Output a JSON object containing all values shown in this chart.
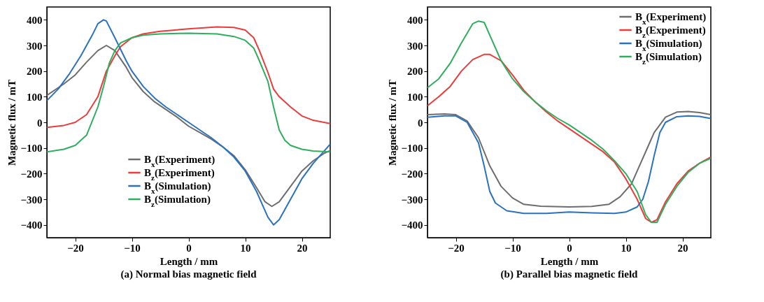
{
  "chart_data": [
    {
      "type": "line",
      "title": "(a) Normal bias magnetic field",
      "xlabel": "Length / mm",
      "ylabel": "Magnetic flux / mT",
      "xlim": [
        -25,
        25
      ],
      "ylim": [
        -450,
        450
      ],
      "xticks": [
        -20,
        -10,
        0,
        10,
        20
      ],
      "yticks": [
        -400,
        -300,
        -200,
        -100,
        0,
        100,
        200,
        300,
        400
      ],
      "legend": "bottom left",
      "series": [
        {
          "name": "B$_{x}$(Experiment)",
          "color": "#6d6d6d",
          "x": [
            -25,
            -22,
            -20,
            -18,
            -16,
            -14.5,
            -13,
            -11,
            -10,
            -8,
            -6,
            -4,
            -2,
            0,
            2,
            4,
            6,
            8,
            10,
            12,
            13.5,
            14.7,
            16,
            18,
            20,
            22,
            24,
            25
          ],
          "values": [
            105,
            150,
            185,
            235,
            280,
            300,
            280,
            215,
            175,
            120,
            80,
            50,
            20,
            -15,
            -40,
            -65,
            -95,
            -130,
            -185,
            -255,
            -310,
            -328,
            -310,
            -250,
            -190,
            -150,
            -120,
            -110
          ]
        },
        {
          "name": "B$_{z}$(Experiment)",
          "color": "#ec3b3b",
          "x": [
            -25,
            -22,
            -20,
            -18,
            -16,
            -14.5,
            -13,
            -12,
            -10,
            -8,
            -5,
            0,
            5,
            8,
            10,
            11.5,
            12.5,
            14,
            15,
            16,
            18,
            20,
            22,
            25
          ],
          "values": [
            -20,
            -12,
            0,
            30,
            100,
            200,
            260,
            295,
            330,
            345,
            355,
            365,
            372,
            370,
            360,
            330,
            280,
            195,
            130,
            100,
            60,
            25,
            8,
            -5
          ]
        },
        {
          "name": "B$_{x}$(Simulation)",
          "color": "#2a72c0",
          "x": [
            -25,
            -23,
            -21,
            -19,
            -17,
            -16,
            -15,
            -14.5,
            -13,
            -11,
            -10,
            -8,
            -6,
            -4,
            -2,
            0,
            2,
            4,
            6,
            8,
            10,
            12,
            14,
            15,
            16,
            18,
            20,
            22,
            24,
            25
          ],
          "values": [
            85,
            130,
            190,
            260,
            340,
            385,
            400,
            395,
            330,
            240,
            200,
            140,
            95,
            60,
            30,
            0,
            -30,
            -60,
            -95,
            -135,
            -190,
            -270,
            -370,
            -400,
            -380,
            -300,
            -220,
            -160,
            -110,
            -85
          ]
        },
        {
          "name": "B$_{z}$(Simulation)",
          "color": "#2fae5e",
          "x": [
            -25,
            -22,
            -20,
            -18,
            -16,
            -15,
            -14,
            -13,
            -12,
            -10,
            -8,
            -5,
            0,
            5,
            8,
            10,
            11.5,
            12.5,
            14,
            15,
            16,
            17,
            18,
            20,
            22,
            25
          ],
          "values": [
            -115,
            -105,
            -90,
            -50,
            60,
            140,
            230,
            280,
            310,
            330,
            340,
            345,
            348,
            345,
            335,
            320,
            290,
            240,
            160,
            60,
            -30,
            -70,
            -90,
            -105,
            -112,
            -115
          ]
        }
      ]
    },
    {
      "type": "line",
      "title": "(b) Parallel bias magnetic field",
      "xlabel": "Length / mm",
      "ylabel": "Magnetic flux / mT",
      "xlim": [
        -25,
        25
      ],
      "ylim": [
        -450,
        450
      ],
      "xticks": [
        -20,
        -10,
        0,
        10,
        20
      ],
      "yticks": [
        -400,
        -300,
        -200,
        -100,
        0,
        100,
        200,
        300,
        400
      ],
      "legend": "top right",
      "series": [
        {
          "name": "B$_{x}$(Experiment)",
          "color": "#6d6d6d",
          "x": [
            -25,
            -22,
            -20,
            -18,
            -16,
            -14,
            -12,
            -10,
            -8,
            -5,
            0,
            4,
            7,
            9,
            11,
            12,
            14,
            15,
            17,
            19,
            21,
            23,
            25
          ],
          "values": [
            30,
            33,
            30,
            5,
            -60,
            -170,
            -250,
            -295,
            -320,
            -327,
            -330,
            -328,
            -320,
            -290,
            -240,
            -190,
            -90,
            -40,
            20,
            40,
            42,
            38,
            30
          ]
        },
        {
          "name": "B$_{z}$(Experiment)",
          "color": "#ec3b3b",
          "x": [
            -25,
            -23,
            -21,
            -19,
            -17,
            -15,
            -14,
            -12,
            -10,
            -8,
            -6,
            -4,
            -2,
            0,
            2,
            4,
            6,
            8,
            10,
            12,
            13.5,
            14.5,
            15.5,
            17,
            19,
            21,
            23,
            25
          ],
          "values": [
            65,
            100,
            140,
            200,
            245,
            265,
            265,
            240,
            185,
            125,
            80,
            40,
            5,
            -25,
            -55,
            -85,
            -115,
            -155,
            -220,
            -300,
            -375,
            -390,
            -380,
            -310,
            -240,
            -190,
            -160,
            -135
          ]
        },
        {
          "name": "B$_{x}$(Simulation)",
          "color": "#2a72c0",
          "x": [
            -25,
            -22,
            -20,
            -18,
            -16,
            -15,
            -14,
            -13,
            -11,
            -8,
            -4,
            0,
            4,
            8,
            10,
            12,
            13,
            14,
            15,
            16,
            17,
            19,
            21,
            23,
            25
          ],
          "values": [
            20,
            25,
            25,
            0,
            -80,
            -170,
            -270,
            -315,
            -345,
            -355,
            -355,
            -350,
            -353,
            -355,
            -350,
            -330,
            -300,
            -230,
            -130,
            -40,
            0,
            22,
            25,
            23,
            15
          ]
        },
        {
          "name": "B$_{z}$(Simulation)",
          "color": "#2fae5e",
          "x": [
            -25,
            -23,
            -21,
            -19,
            -17,
            -16,
            -15,
            -14,
            -12,
            -10,
            -8,
            -6,
            -4,
            -2,
            0,
            2,
            4,
            6,
            8,
            10,
            12,
            13.5,
            14.5,
            15.5,
            17,
            19,
            21,
            23,
            25
          ],
          "values": [
            135,
            170,
            230,
            310,
            385,
            395,
            390,
            340,
            240,
            170,
            120,
            80,
            45,
            15,
            -10,
            -40,
            -70,
            -105,
            -150,
            -200,
            -270,
            -360,
            -390,
            -390,
            -320,
            -250,
            -195,
            -160,
            -140
          ]
        }
      ]
    }
  ]
}
